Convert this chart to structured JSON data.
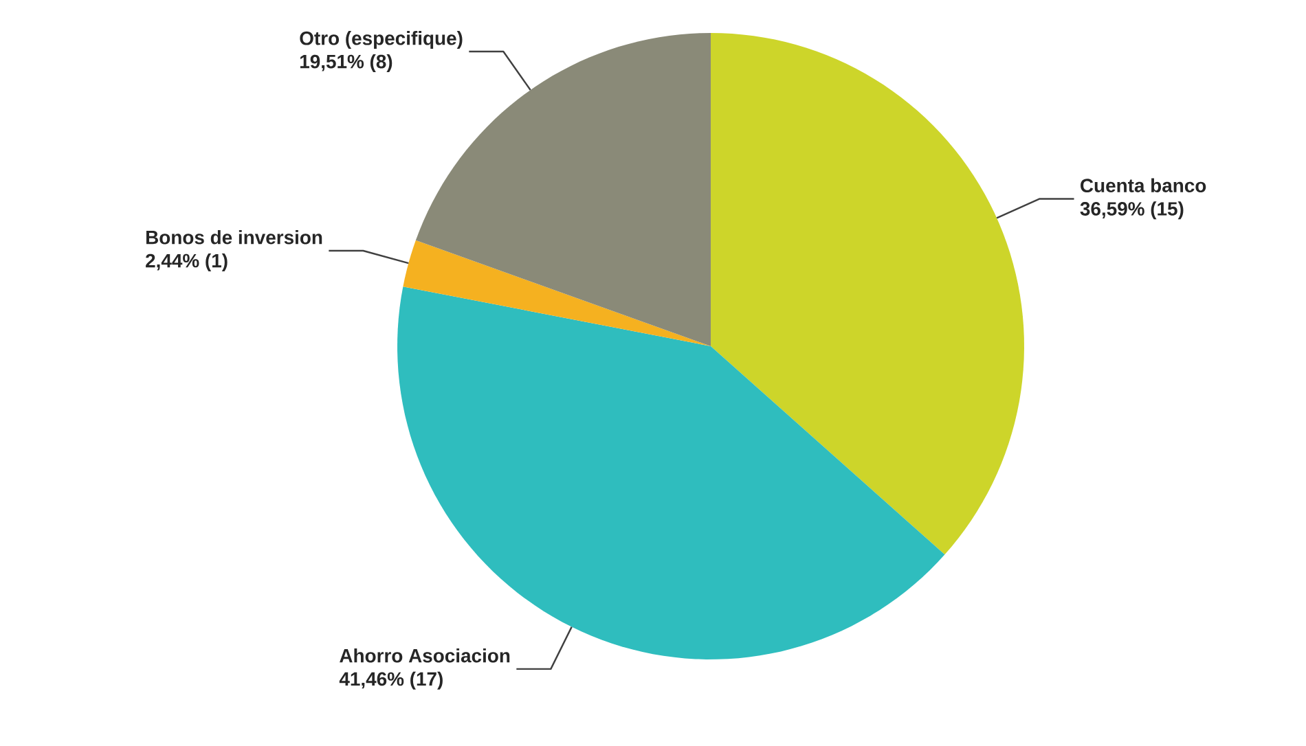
{
  "chart_data": {
    "type": "pie",
    "categories": [
      "Cuenta banco",
      "Ahorro Asociacion",
      "Bonos de inversion",
      "Otro (especifique)"
    ],
    "values": [
      15,
      17,
      1,
      8
    ],
    "value_labels": [
      "36,59% (15)",
      "41,46% (17)",
      "2,44% (1)",
      "19,51% (8)"
    ],
    "colors": [
      "#cdd52a",
      "#2fbdbe",
      "#f5b120",
      "#8a8a78"
    ]
  }
}
